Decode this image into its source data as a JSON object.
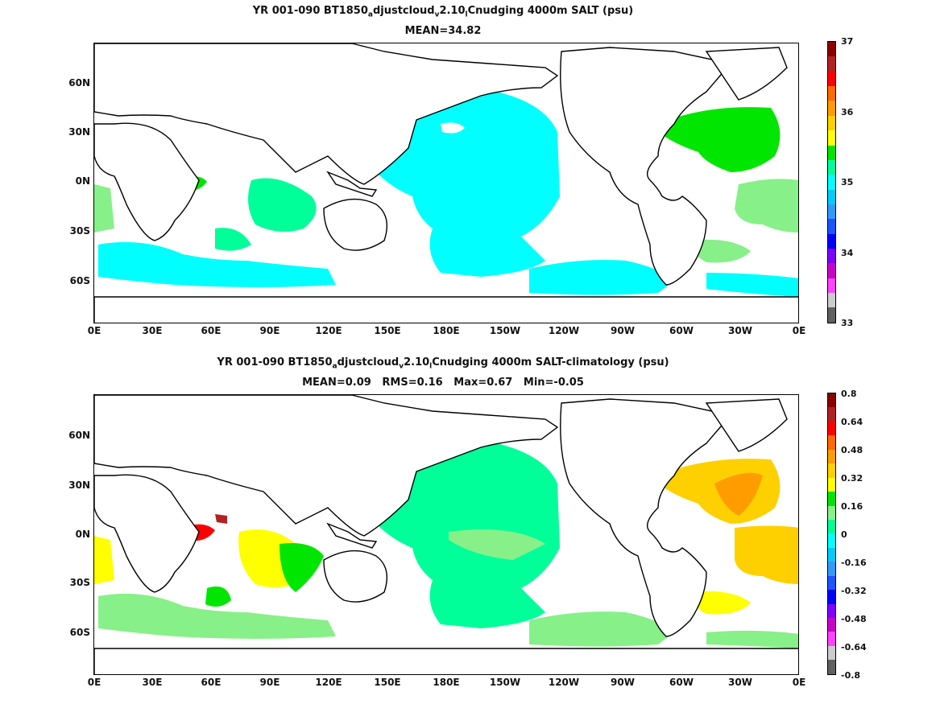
{
  "panels": [
    {
      "title_parts": [
        "YR 001-090 BT1850",
        "a",
        "djustcloud",
        "v",
        "2.10",
        "l",
        "Cnudging 4000m SALT (psu)"
      ],
      "subtitle": "MEAN=34.82",
      "colorbar": {
        "labels": [
          "37",
          "36",
          "35",
          "34",
          "33"
        ],
        "colors": [
          "#8b0000",
          "#b22222",
          "#ff0000",
          "#ff6a00",
          "#ff9d00",
          "#ffd000",
          "#ffff00",
          "#00e600",
          "#00ff99",
          "#00ffff",
          "#00ccff",
          "#3399ff",
          "#1a55ff",
          "#0000ff",
          "#8000ff",
          "#cc00cc",
          "#ff44ff",
          "#cccccc",
          "#606060"
        ]
      },
      "fields": {
        "pacific": "#00ffff",
        "atlantic_north": "#00e600",
        "atlantic_south": "#88f088",
        "indian": "#00ff99",
        "southern": "#00ffff"
      }
    },
    {
      "title_parts": [
        "YR 001-090 BT1850",
        "a",
        "djustcloud",
        "v",
        "2.10",
        "l",
        "Cnudging 4000m SALT-climatology (psu)"
      ],
      "subtitle": "MEAN=0.09   RMS=0.16   Max=0.67   Min=-0.05",
      "colorbar": {
        "labels": [
          "0.8",
          "0.64",
          "0.48",
          "0.32",
          "0.16",
          "0",
          "-0.16",
          "-0.32",
          "-0.48",
          "-0.64",
          "-0.8"
        ],
        "colors": [
          "#8b0000",
          "#b22222",
          "#ff0000",
          "#ff6a00",
          "#ff9d00",
          "#ffd000",
          "#ffff00",
          "#00e600",
          "#88f088",
          "#00ff99",
          "#00ffff",
          "#00ccff",
          "#3399ff",
          "#1a55ff",
          "#0000ff",
          "#8000ff",
          "#cc00cc",
          "#ff44ff",
          "#cccccc",
          "#606060"
        ]
      },
      "fields": {
        "pacific": "#00ff99",
        "atlantic_north": "#ffd000",
        "atlantic_south": "#ffd000",
        "indian": "#ffff00",
        "southern": "#88f088"
      }
    }
  ],
  "axes": {
    "y_labels": [
      "60N",
      "30N",
      "0N",
      "30S",
      "60S"
    ],
    "x_labels": [
      "0E",
      "30E",
      "60E",
      "90E",
      "120E",
      "150E",
      "180E",
      "150W",
      "120W",
      "90W",
      "60W",
      "30W",
      "0E"
    ]
  },
  "colors": {
    "land_outline": "#000000",
    "land_fill": "#ffffff"
  }
}
